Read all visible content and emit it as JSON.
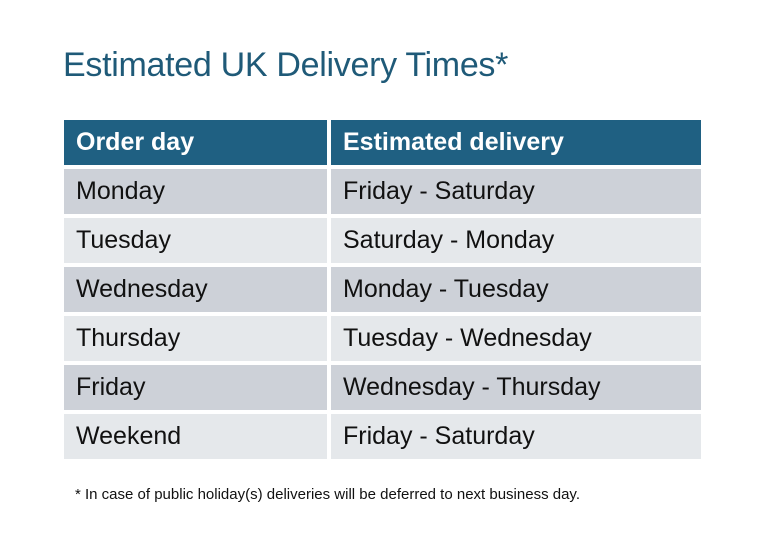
{
  "title": "Estimated UK Delivery Times*",
  "table": {
    "headers": [
      "Order day",
      "Estimated delivery"
    ],
    "rows": [
      [
        "Monday",
        "Friday - Saturday"
      ],
      [
        "Tuesday",
        "Saturday - Monday"
      ],
      [
        "Wednesday",
        "Monday - Tuesday"
      ],
      [
        "Thursday",
        "Tuesday - Wednesday"
      ],
      [
        "Friday",
        "Wednesday - Thursday"
      ],
      [
        "Weekend",
        "Friday - Saturday"
      ]
    ]
  },
  "footnote": "* In case of public holiday(s) deliveries will be deferred to next business day.",
  "colors": {
    "header": "#1f6082",
    "title": "#1f5a78",
    "row_dark": "#cdd1d8",
    "row_light": "#e5e8eb"
  }
}
